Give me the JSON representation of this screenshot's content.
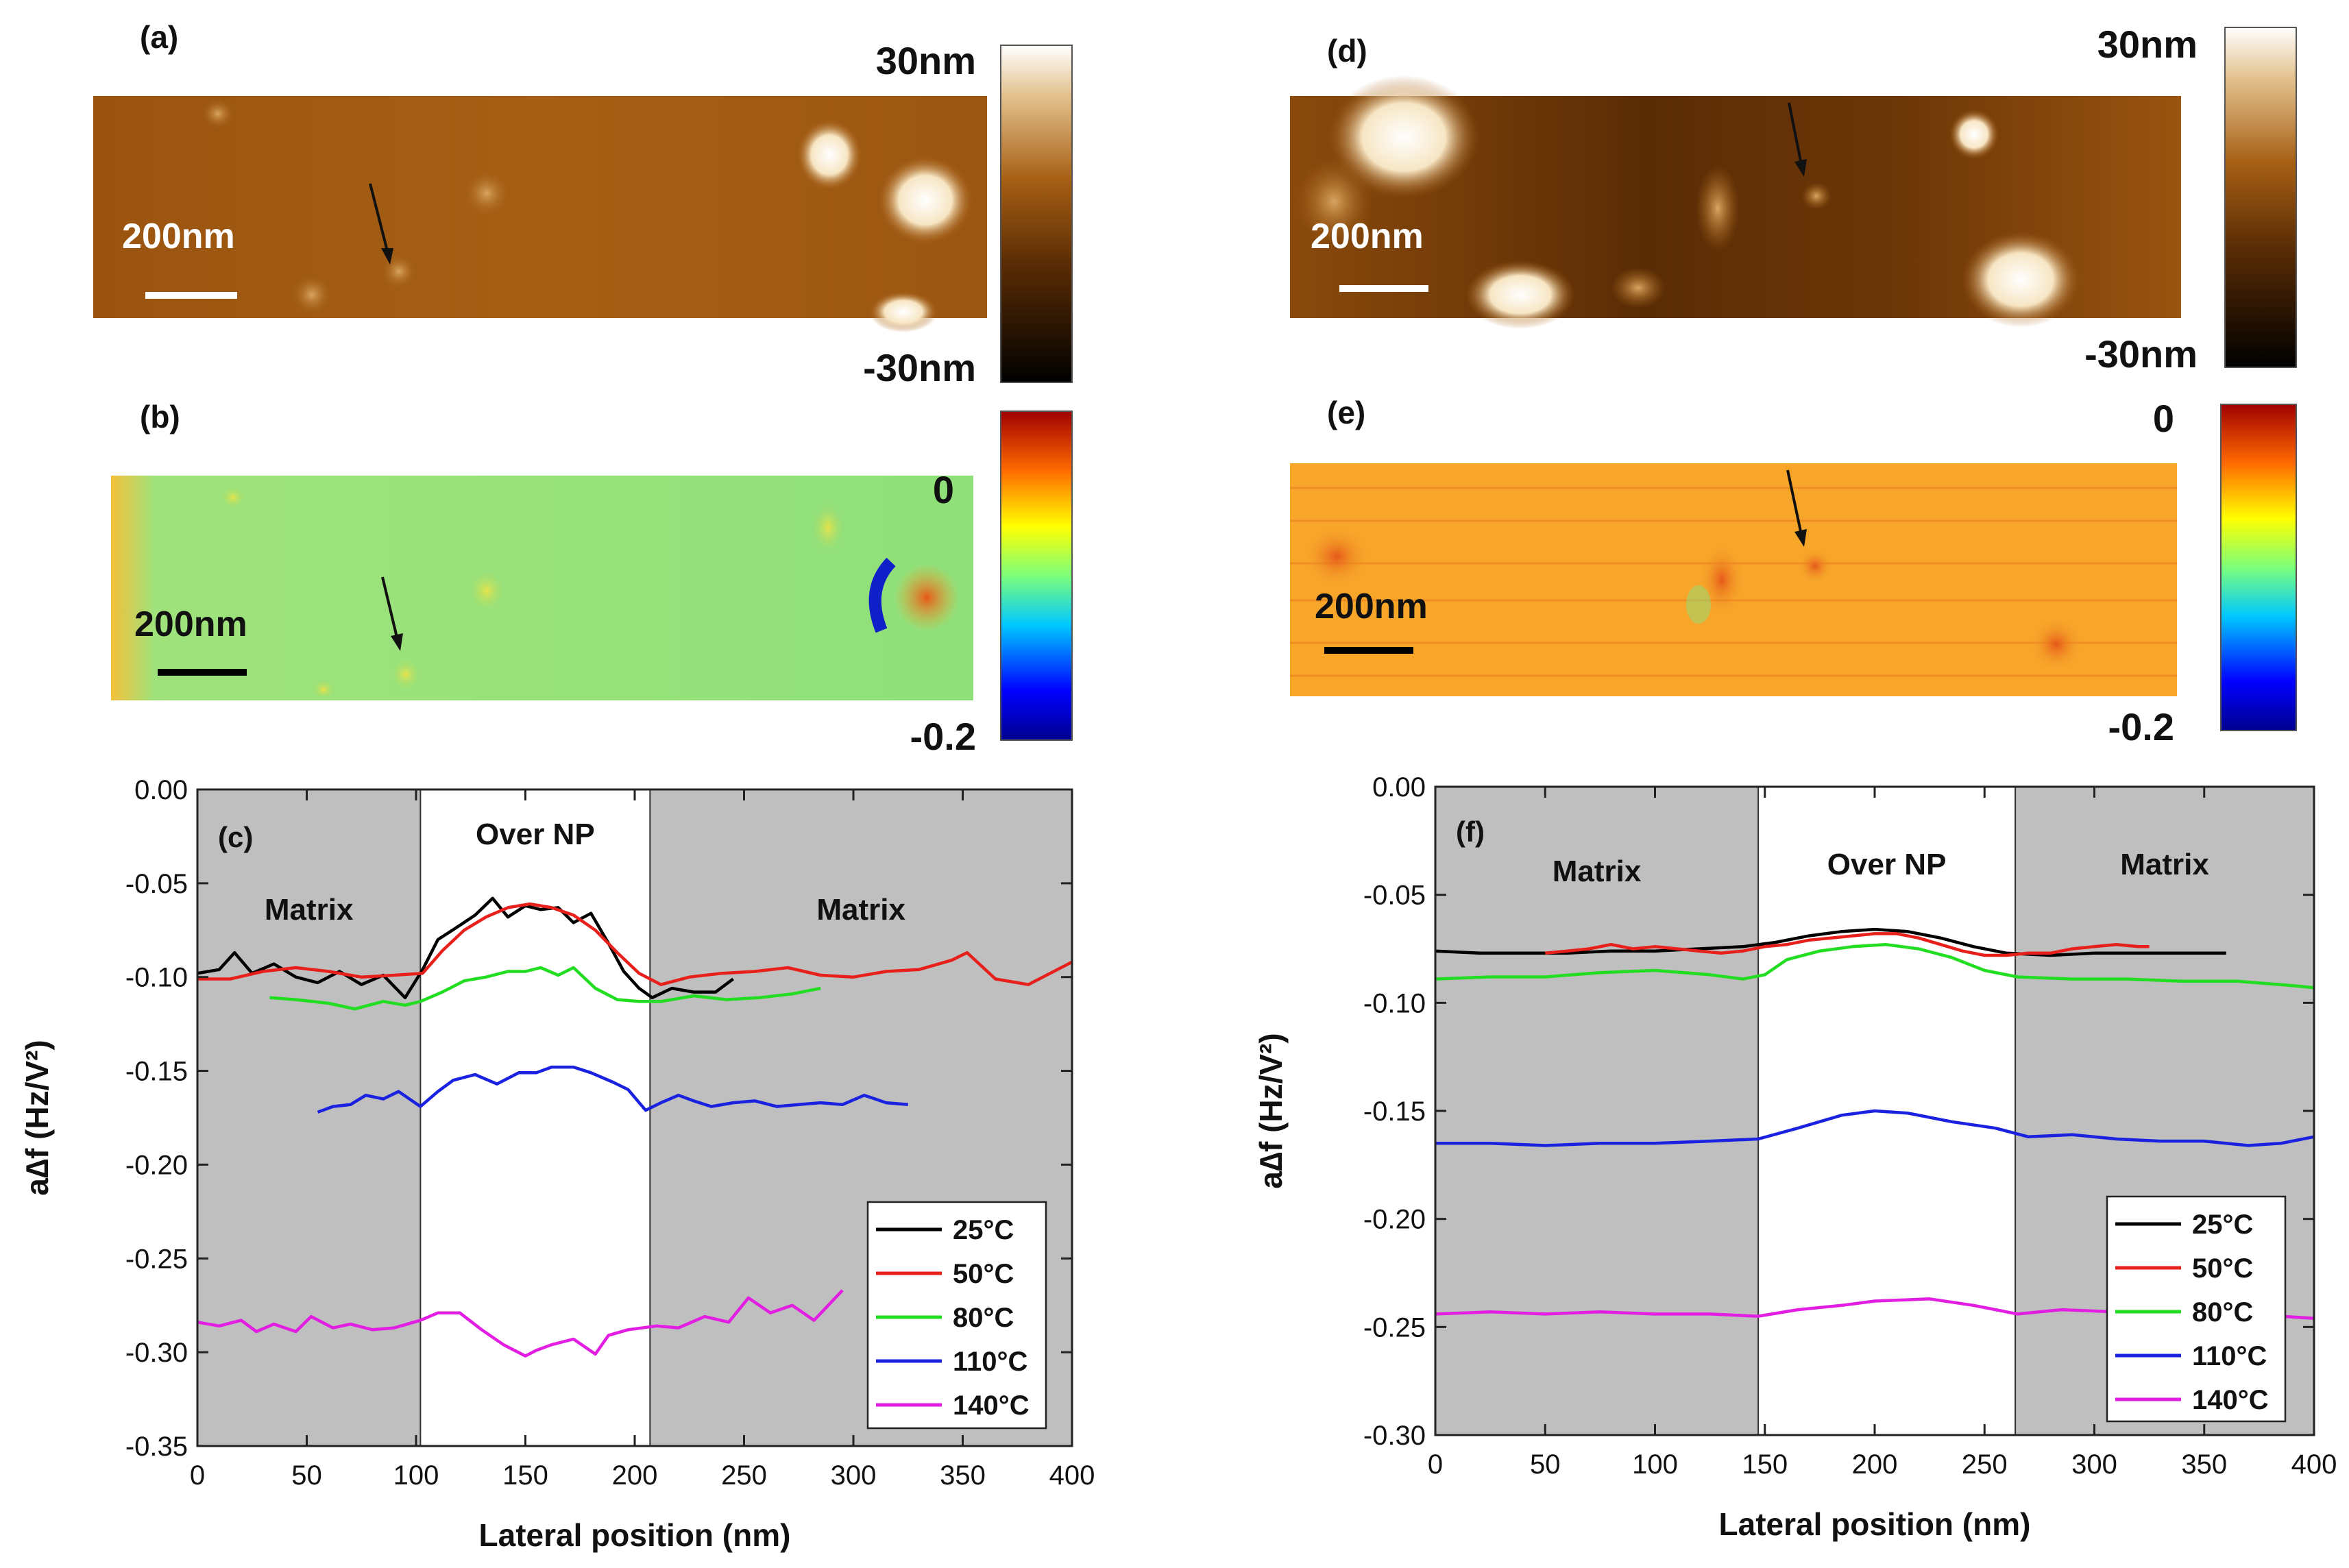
{
  "panels": {
    "a": {
      "letter": "(a)",
      "scale_label": "200nm",
      "cb_max": "30nm",
      "cb_min": "-30nm"
    },
    "b": {
      "letter": "(b)",
      "scale_label": "200nm",
      "cb_max": "0",
      "cb_min": "-0.2"
    },
    "d": {
      "letter": "(d)",
      "scale_label": "200nm",
      "cb_max": "30nm",
      "cb_min": "-30nm"
    },
    "e": {
      "letter": "(e)",
      "scale_label": "200nm",
      "cb_max": "0",
      "cb_min": "-0.2"
    }
  },
  "colors": {
    "afm_brown_dark": "#5a2c05",
    "afm_brown": "#a65f14",
    "afm_bright": "#fff6e0",
    "kpfm_green": "#8fe07a",
    "kpfm_orange": "#f7a62a",
    "matrix_gray": "#bfbfbf",
    "series": [
      "#000000",
      "#e8201b",
      "#22dd22",
      "#1a22e0",
      "#e21ee2"
    ]
  },
  "chart_data": [
    {
      "id": "c",
      "type": "line",
      "panel_label": "(c)",
      "xlabel": "Lateral position (nm)",
      "ylabel": "a∆f (Hz/V²)",
      "xlim": [
        0,
        400
      ],
      "ylim": [
        -0.35,
        0.0
      ],
      "xticks": [
        0,
        50,
        100,
        150,
        200,
        250,
        300,
        350,
        400
      ],
      "yticks": [
        0.0,
        -0.05,
        -0.1,
        -0.15,
        -0.2,
        -0.25,
        -0.3,
        -0.35
      ],
      "region_labels": [
        "Matrix",
        "Over NP",
        "Matrix"
      ],
      "region_bounds": [
        0,
        102,
        207,
        400
      ],
      "legend": [
        "25°C",
        "50°C",
        "80°C",
        "110°C",
        "140°C"
      ],
      "series": [
        {
          "name": "25°C",
          "x": [
            0,
            10,
            17,
            25,
            35,
            45,
            55,
            65,
            75,
            85,
            95,
            103,
            110,
            118,
            127,
            135,
            142,
            150,
            157,
            165,
            172,
            180,
            188,
            195,
            202,
            208,
            217,
            227,
            237,
            245
          ],
          "y": [
            -0.098,
            -0.096,
            -0.087,
            -0.098,
            -0.093,
            -0.1,
            -0.103,
            -0.097,
            -0.104,
            -0.099,
            -0.111,
            -0.096,
            -0.08,
            -0.074,
            -0.067,
            -0.058,
            -0.068,
            -0.062,
            -0.064,
            -0.063,
            -0.071,
            -0.066,
            -0.082,
            -0.097,
            -0.106,
            -0.111,
            -0.106,
            -0.108,
            -0.108,
            -0.101
          ]
        },
        {
          "name": "50°C",
          "x": [
            0,
            15,
            30,
            45,
            60,
            75,
            90,
            103,
            112,
            122,
            132,
            142,
            152,
            162,
            172,
            182,
            192,
            202,
            212,
            225,
            240,
            255,
            270,
            285,
            300,
            315,
            330,
            345,
            352,
            365,
            380,
            390,
            400
          ],
          "y": [
            -0.101,
            -0.101,
            -0.097,
            -0.095,
            -0.097,
            -0.1,
            -0.099,
            -0.098,
            -0.086,
            -0.075,
            -0.068,
            -0.063,
            -0.061,
            -0.063,
            -0.067,
            -0.075,
            -0.087,
            -0.098,
            -0.104,
            -0.1,
            -0.098,
            -0.097,
            -0.095,
            -0.099,
            -0.1,
            -0.097,
            -0.096,
            -0.091,
            -0.087,
            -0.101,
            -0.104,
            -0.098,
            -0.092
          ]
        },
        {
          "name": "80°C",
          "x": [
            33,
            45,
            60,
            72,
            85,
            95,
            102,
            112,
            122,
            132,
            142,
            150,
            157,
            165,
            172,
            182,
            192,
            202,
            212,
            227,
            242,
            257,
            272,
            285
          ],
          "y": [
            -0.111,
            -0.112,
            -0.114,
            -0.117,
            -0.113,
            -0.115,
            -0.113,
            -0.108,
            -0.102,
            -0.1,
            -0.097,
            -0.097,
            -0.095,
            -0.099,
            -0.095,
            -0.106,
            -0.112,
            -0.113,
            -0.113,
            -0.11,
            -0.112,
            -0.111,
            -0.109,
            -0.106
          ]
        },
        {
          "name": "110°C",
          "x": [
            55,
            62,
            70,
            77,
            85,
            92,
            102,
            110,
            117,
            127,
            137,
            147,
            155,
            162,
            172,
            180,
            190,
            197,
            205,
            212,
            220,
            227,
            235,
            245,
            255,
            265,
            275,
            285,
            295,
            305,
            315,
            325
          ],
          "y": [
            -0.172,
            -0.169,
            -0.168,
            -0.163,
            -0.165,
            -0.161,
            -0.169,
            -0.161,
            -0.155,
            -0.152,
            -0.157,
            -0.151,
            -0.151,
            -0.148,
            -0.148,
            -0.151,
            -0.156,
            -0.16,
            -0.171,
            -0.167,
            -0.163,
            -0.166,
            -0.169,
            -0.167,
            -0.166,
            -0.169,
            -0.168,
            -0.167,
            -0.168,
            -0.163,
            -0.167,
            -0.168
          ]
        },
        {
          "name": "140°C",
          "x": [
            0,
            10,
            20,
            27,
            35,
            45,
            52,
            62,
            70,
            80,
            90,
            102,
            110,
            120,
            130,
            140,
            150,
            155,
            162,
            172,
            182,
            188,
            197,
            210,
            220,
            232,
            243,
            252,
            262,
            272,
            282,
            295
          ],
          "y": [
            -0.284,
            -0.286,
            -0.283,
            -0.289,
            -0.285,
            -0.289,
            -0.281,
            -0.287,
            -0.285,
            -0.288,
            -0.287,
            -0.283,
            -0.279,
            -0.279,
            -0.288,
            -0.296,
            -0.302,
            -0.299,
            -0.296,
            -0.293,
            -0.301,
            -0.291,
            -0.288,
            -0.286,
            -0.287,
            -0.281,
            -0.284,
            -0.271,
            -0.279,
            -0.275,
            -0.283,
            -0.267
          ]
        }
      ]
    },
    {
      "id": "f",
      "type": "line",
      "panel_label": "(f)",
      "xlabel": "Lateral position (nm)",
      "ylabel": "a∆f (Hz/V²)",
      "xlim": [
        0,
        400
      ],
      "ylim": [
        -0.3,
        0.0
      ],
      "xticks": [
        0,
        50,
        100,
        150,
        200,
        250,
        300,
        350,
        400
      ],
      "yticks": [
        0.0,
        -0.05,
        -0.1,
        -0.15,
        -0.2,
        -0.25,
        -0.3
      ],
      "region_labels": [
        "Matrix",
        "Over NP",
        "Matrix"
      ],
      "region_bounds": [
        0,
        147,
        264,
        400
      ],
      "legend": [
        "25°C",
        "50°C",
        "80°C",
        "110°C",
        "140°C"
      ],
      "series": [
        {
          "name": "25°C",
          "x": [
            0,
            20,
            40,
            60,
            80,
            100,
            120,
            140,
            155,
            170,
            185,
            200,
            215,
            230,
            245,
            260,
            280,
            300,
            320,
            340,
            360
          ],
          "y": [
            -0.076,
            -0.077,
            -0.077,
            -0.077,
            -0.076,
            -0.076,
            -0.075,
            -0.074,
            -0.072,
            -0.069,
            -0.067,
            -0.066,
            -0.067,
            -0.07,
            -0.074,
            -0.077,
            -0.078,
            -0.077,
            -0.077,
            -0.077,
            -0.077
          ]
        },
        {
          "name": "50°C",
          "x": [
            50,
            60,
            70,
            80,
            90,
            100,
            110,
            120,
            130,
            140,
            150,
            160,
            170,
            180,
            190,
            200,
            210,
            220,
            230,
            240,
            250,
            260,
            270,
            280,
            290,
            300,
            310,
            320,
            325
          ],
          "y": [
            -0.077,
            -0.076,
            -0.075,
            -0.073,
            -0.075,
            -0.074,
            -0.075,
            -0.076,
            -0.077,
            -0.076,
            -0.074,
            -0.073,
            -0.071,
            -0.07,
            -0.069,
            -0.068,
            -0.068,
            -0.07,
            -0.073,
            -0.076,
            -0.078,
            -0.078,
            -0.077,
            -0.077,
            -0.075,
            -0.074,
            -0.073,
            -0.074,
            -0.074
          ]
        },
        {
          "name": "80°C",
          "x": [
            0,
            25,
            50,
            75,
            100,
            125,
            140,
            150,
            160,
            175,
            190,
            205,
            220,
            235,
            250,
            265,
            290,
            315,
            340,
            365,
            390,
            400
          ],
          "y": [
            -0.089,
            -0.088,
            -0.088,
            -0.086,
            -0.085,
            -0.087,
            -0.089,
            -0.087,
            -0.08,
            -0.076,
            -0.074,
            -0.073,
            -0.075,
            -0.079,
            -0.085,
            -0.088,
            -0.089,
            -0.089,
            -0.09,
            -0.09,
            -0.092,
            -0.093
          ]
        },
        {
          "name": "110°C",
          "x": [
            0,
            25,
            50,
            75,
            100,
            125,
            147,
            165,
            185,
            200,
            215,
            235,
            255,
            270,
            290,
            310,
            330,
            350,
            370,
            385,
            400
          ],
          "y": [
            -0.165,
            -0.165,
            -0.166,
            -0.165,
            -0.165,
            -0.164,
            -0.163,
            -0.158,
            -0.152,
            -0.15,
            -0.151,
            -0.155,
            -0.158,
            -0.162,
            -0.161,
            -0.163,
            -0.164,
            -0.164,
            -0.166,
            -0.165,
            -0.162
          ]
        },
        {
          "name": "140°C",
          "x": [
            0,
            25,
            50,
            75,
            100,
            125,
            147,
            165,
            185,
            200,
            225,
            245,
            265,
            285,
            310,
            335,
            360,
            385,
            400
          ],
          "y": [
            -0.244,
            -0.243,
            -0.244,
            -0.243,
            -0.244,
            -0.244,
            -0.245,
            -0.242,
            -0.24,
            -0.238,
            -0.237,
            -0.24,
            -0.244,
            -0.242,
            -0.243,
            -0.244,
            -0.245,
            -0.245,
            -0.246
          ]
        }
      ]
    }
  ]
}
